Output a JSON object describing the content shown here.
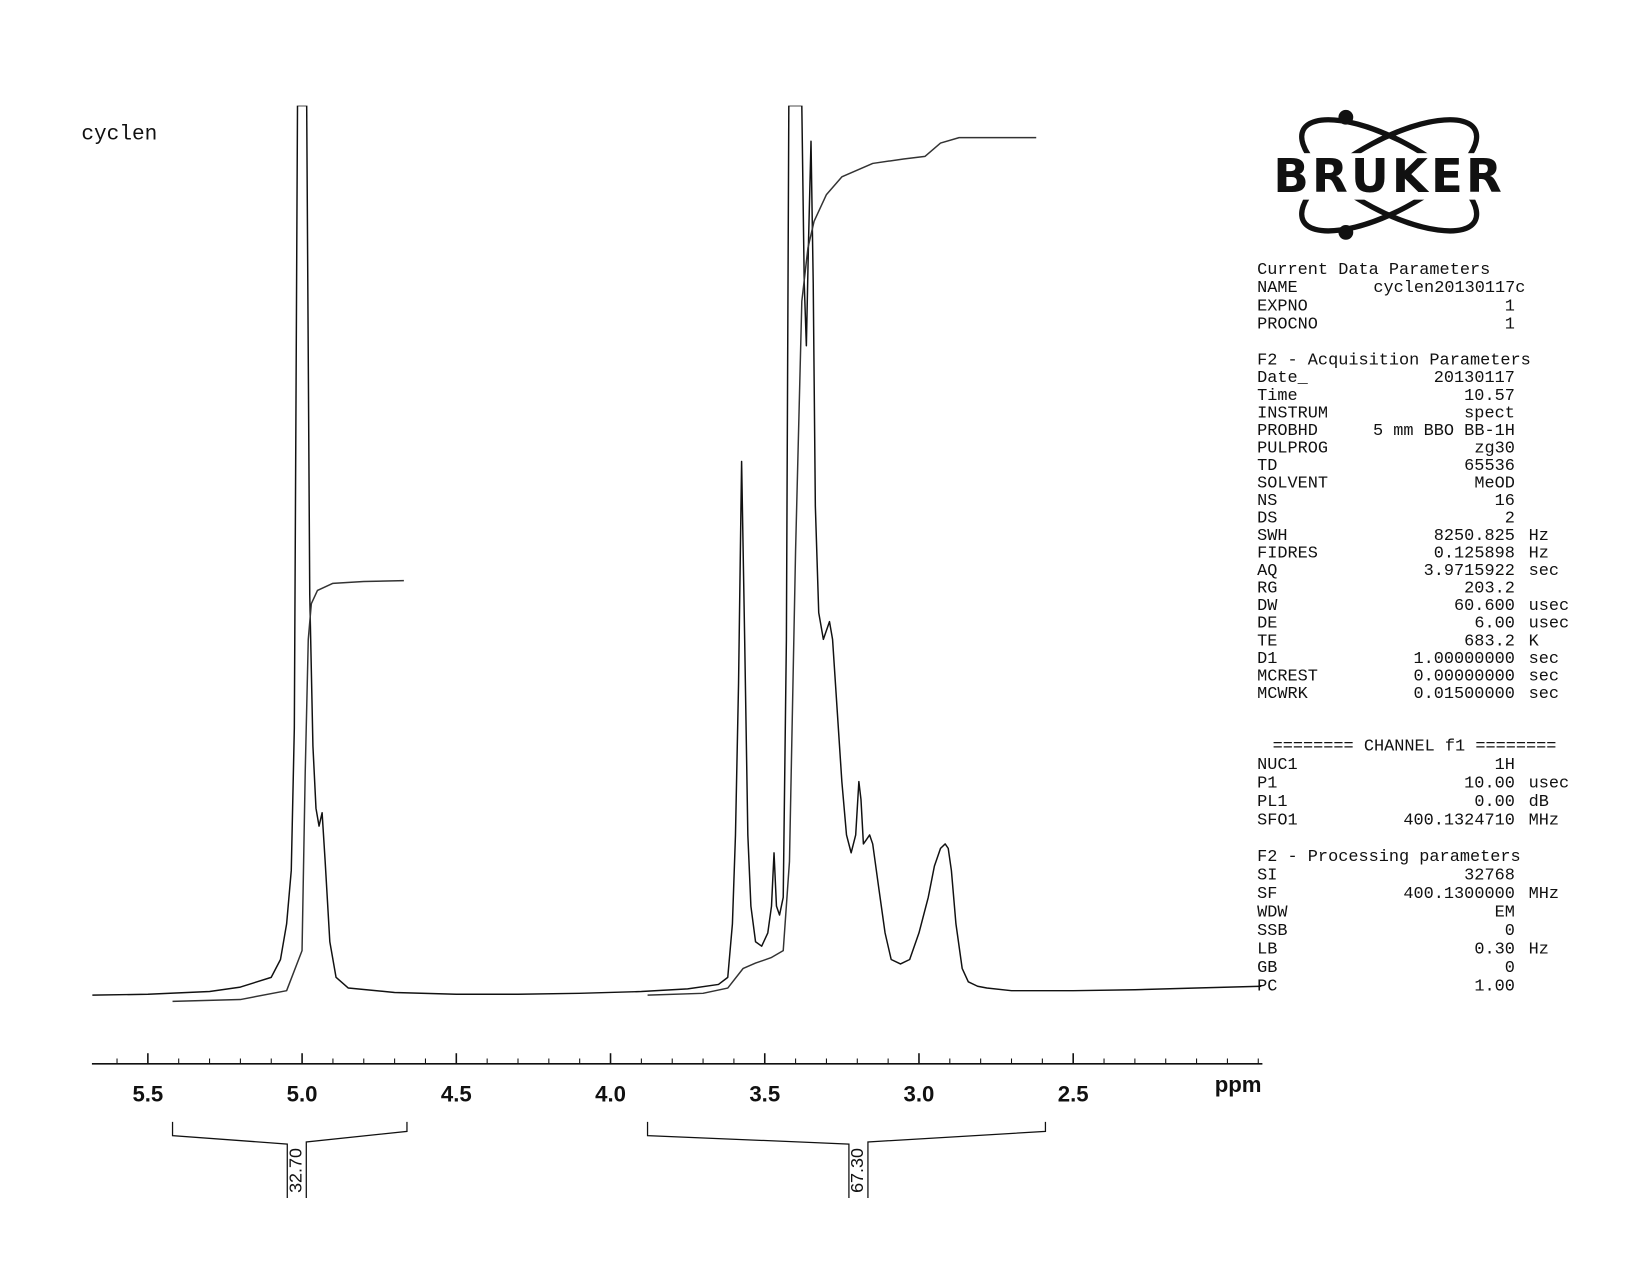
{
  "chart_data": {
    "type": "line",
    "title": "cyclen",
    "x_label": "ppm",
    "xlim": [
      5.68,
      1.89
    ],
    "ylim": [
      0,
      100
    ],
    "xticks": [
      5.5,
      {
        "value": 5,
        "label": "5.0"
      },
      4.5,
      {
        "value": 4,
        "label": "4.0"
      },
      3.5,
      {
        "value": 3,
        "label": "3.0"
      },
      2.5
    ],
    "x_minor_ticks": [
      5.6,
      5.4,
      5.3,
      5.2,
      5.1,
      4.9,
      4.8,
      4.7,
      4.6,
      4.4,
      4.3,
      4.2,
      4.1,
      3.9,
      3.8,
      3.7,
      3.6,
      3.4,
      3.3,
      3.2,
      3.1,
      2.9,
      2.8,
      2.7,
      2.6,
      2.4,
      2.3,
      2.2,
      2.1,
      2.0,
      1.9
    ],
    "series": [
      {
        "color": "#111111",
        "x": [
          5.68,
          5.5,
          5.3,
          5.2,
          5.1,
          5.07,
          5.05,
          5.035,
          5.025,
          5.015,
          5.0,
          4.985,
          4.975,
          4.965,
          4.955,
          4.945,
          4.935,
          4.925,
          4.91,
          4.89,
          4.85,
          4.7,
          4.5,
          4.3,
          4.1,
          3.9,
          3.75,
          3.65,
          3.62,
          3.605,
          3.595,
          3.585,
          3.575,
          3.565,
          3.555,
          3.545,
          3.53,
          3.51,
          3.49,
          3.478,
          3.47,
          3.462,
          3.452,
          3.44,
          3.43,
          3.422,
          3.39,
          3.38,
          3.372,
          3.365,
          3.358,
          3.35,
          3.343,
          3.336,
          3.325,
          3.31,
          3.29,
          3.28,
          3.265,
          3.25,
          3.235,
          3.22,
          3.205,
          3.195,
          3.188,
          3.18,
          3.17,
          3.16,
          3.15,
          3.13,
          3.11,
          3.09,
          3.06,
          3.03,
          3.0,
          2.97,
          2.95,
          2.93,
          2.915,
          2.905,
          2.895,
          2.88,
          2.86,
          2.84,
          2.81,
          2.78,
          2.7,
          2.5,
          2.3,
          2.1,
          1.89
        ],
        "values": [
          0,
          0.1,
          0.4,
          0.9,
          2,
          4,
          8,
          14,
          30,
          100,
          100,
          100,
          45,
          28,
          21,
          19,
          20.5,
          15,
          6,
          2,
          0.8,
          0.3,
          0.1,
          0.1,
          0.2,
          0.4,
          0.7,
          1.2,
          2,
          8,
          18,
          35,
          60,
          40,
          18,
          10,
          6,
          5.5,
          7,
          10,
          16,
          10,
          9,
          11,
          40,
          100,
          100,
          100,
          80,
          73,
          85,
          96,
          80,
          55,
          43,
          40,
          42,
          40,
          32,
          24,
          18,
          16,
          18,
          24,
          22,
          17,
          17.5,
          18,
          17,
          12,
          7,
          4,
          3.5,
          4,
          7,
          11,
          14.5,
          16.5,
          17,
          16.5,
          14,
          8,
          3,
          1.5,
          1,
          0.8,
          0.5,
          0.5,
          0.6,
          0.8,
          1
        ]
      },
      {
        "color": "#333333",
        "x": [
          5.42,
          5.2,
          5.05,
          5.0,
          4.99,
          4.98,
          4.97,
          4.95,
          4.9,
          4.8,
          4.67
        ],
        "values": [
          -0.7,
          -0.5,
          0.5,
          5,
          25,
          40,
          44,
          45.5,
          46.3,
          46.5,
          46.6
        ]
      },
      {
        "color": "#333333",
        "x": [
          3.88,
          3.7,
          3.62,
          3.57,
          3.53,
          3.48,
          3.44,
          3.42,
          3.4,
          3.38,
          3.36,
          3.34,
          3.3,
          3.25,
          3.15,
          3.05,
          2.98,
          2.93,
          2.87,
          2.62
        ],
        "values": [
          0,
          0.2,
          0.8,
          3,
          3.6,
          4.2,
          5,
          15,
          50,
          78,
          84,
          87,
          90,
          92,
          93.5,
          94,
          94.3,
          95.8,
          96.4,
          96.4
        ]
      }
    ],
    "integrals": {
      "ranges": [
        [
          5.42,
          4.66
        ],
        [
          3.88,
          2.59
        ]
      ],
      "values": [
        32.7,
        67.3
      ],
      "value_labels": [
        "32.70",
        "67.30"
      ]
    }
  },
  "logo": "BRUKER",
  "parameters": {
    "sections": [
      {
        "heading": "Current Data Parameters",
        "rows": [
          [
            "NAME",
            "cyclen20130117c"
          ],
          [
            "EXPNO",
            "1"
          ],
          [
            "PROCNO",
            "1"
          ]
        ]
      },
      {
        "heading": "F2 - Acquisition Parameters",
        "rows": [
          [
            "Date_",
            "20130117"
          ],
          [
            "Time",
            "10.57"
          ],
          [
            "INSTRUM",
            "spect"
          ],
          [
            "PROBHD",
            "5 mm BBO BB-1H"
          ],
          [
            "PULPROG",
            "zg30"
          ],
          [
            "TD",
            "65536"
          ],
          [
            "SOLVENT",
            "MeOD"
          ],
          [
            "NS",
            "16"
          ],
          [
            "DS",
            "2"
          ],
          [
            "SWH",
            "8250.825",
            "Hz"
          ],
          [
            "FIDRES",
            "0.125898",
            "Hz"
          ],
          [
            "AQ",
            "3.9715922",
            "sec"
          ],
          [
            "RG",
            "203.2"
          ],
          [
            "DW",
            "60.600",
            "usec"
          ],
          [
            "DE",
            "6.00",
            "usec"
          ],
          [
            "TE",
            "683.2",
            "K"
          ],
          [
            "D1",
            "1.00000000",
            "sec"
          ],
          [
            "MCREST",
            "0.00000000",
            "sec"
          ],
          [
            "MCWRK",
            "0.01500000",
            "sec"
          ]
        ]
      },
      {
        "heading": "======== CHANNEL f1 ========",
        "rows": [
          [
            "NUC1",
            "1H"
          ],
          [
            "P1",
            "10.00",
            "usec"
          ],
          [
            "PL1",
            "0.00",
            "dB"
          ],
          [
            "SFO1",
            "400.1324710",
            "MHz"
          ]
        ]
      },
      {
        "heading": "F2 - Processing parameters",
        "rows": [
          [
            "SI",
            "32768"
          ],
          [
            "SF",
            "400.1300000",
            "MHz"
          ],
          [
            "WDW",
            "EM"
          ],
          [
            "SSB",
            "0"
          ],
          [
            "LB",
            "0.30",
            "Hz"
          ],
          [
            "GB",
            "0"
          ],
          [
            "PC",
            "1.00"
          ]
        ]
      }
    ]
  }
}
